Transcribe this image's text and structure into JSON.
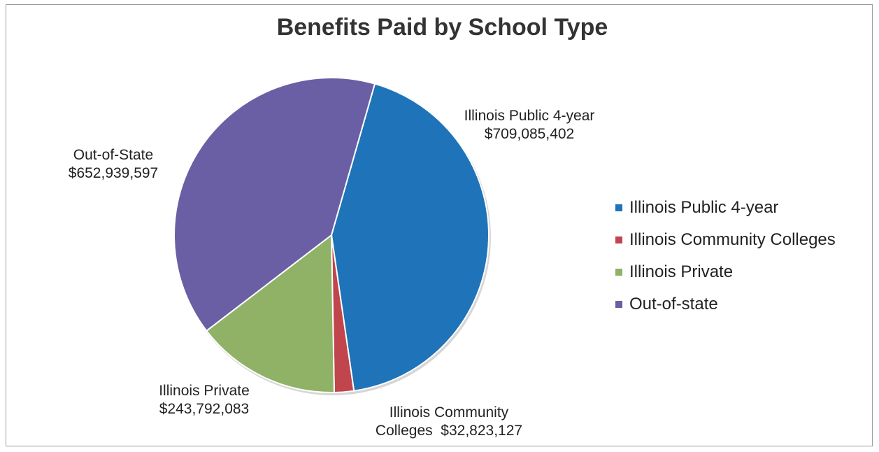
{
  "chart_data": {
    "type": "pie",
    "title": "Benefits Paid by School Type",
    "slices": [
      {
        "name": "Illinois Public 4-year",
        "value": 709085402,
        "value_label": "$709,085,402",
        "callout": [
          "Illinois Public 4-year",
          "$709,085,402"
        ],
        "color": "#1f73b8"
      },
      {
        "name": "Illinois Community Colleges",
        "value": 32823127,
        "value_label": "$32,823,127",
        "callout": [
          "Illinois Community",
          "Colleges  $32,823,127"
        ],
        "color": "#c0454c"
      },
      {
        "name": "Illinois Private",
        "value": 243792083,
        "value_label": "$243,792,083",
        "callout": [
          "Illinois Private",
          "$243,792,083"
        ],
        "color": "#8fb267"
      },
      {
        "name": "Out-of-State",
        "value": 652939597,
        "value_label": "$652,939,597",
        "callout": [
          "Out-of-State",
          "$652,939,597"
        ],
        "color": "#6a5fa4"
      }
    ],
    "legend": {
      "position": "right",
      "entries": [
        {
          "label": "Illinois Public 4-year",
          "color": "#1f73b8"
        },
        {
          "label": "Illinois Community Colleges",
          "color": "#c0454c"
        },
        {
          "label": "Illinois Private",
          "color": "#8fb267"
        },
        {
          "label": "Out-of-state",
          "color": "#6a5fa4"
        }
      ]
    }
  }
}
